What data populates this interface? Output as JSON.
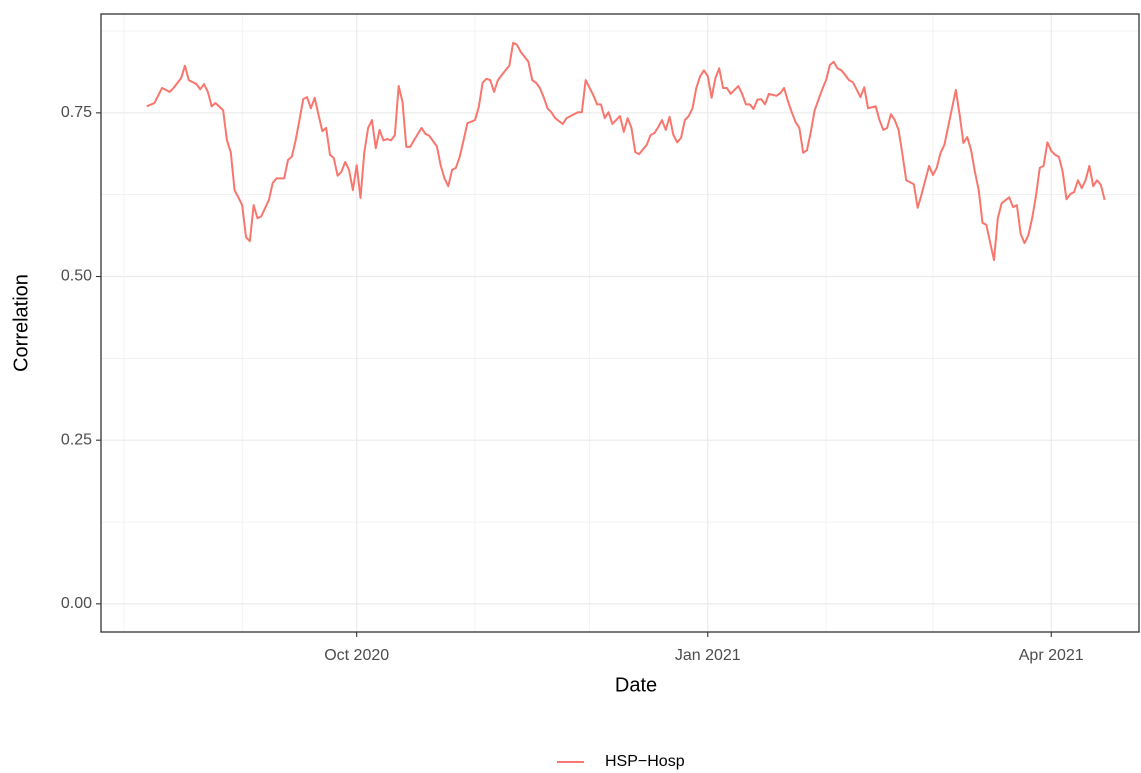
{
  "chart_data": {
    "type": "line",
    "x_label": "Date",
    "y_label": "Correlation",
    "x": [
      "2020-08-07",
      "2020-08-09",
      "2020-08-11",
      "2020-08-13",
      "2020-08-14",
      "2020-08-16",
      "2020-08-17",
      "2020-08-18",
      "2020-08-20",
      "2020-08-21",
      "2020-08-22",
      "2020-08-23",
      "2020-08-24",
      "2020-08-25",
      "2020-08-27",
      "2020-08-28",
      "2020-08-29",
      "2020-08-30",
      "2020-08-31",
      "2020-09-01",
      "2020-09-02",
      "2020-09-03",
      "2020-09-04",
      "2020-09-05",
      "2020-09-06",
      "2020-09-08",
      "2020-09-09",
      "2020-09-10",
      "2020-09-12",
      "2020-09-13",
      "2020-09-14",
      "2020-09-15",
      "2020-09-16",
      "2020-09-17",
      "2020-09-18",
      "2020-09-19",
      "2020-09-20",
      "2020-09-21",
      "2020-09-22",
      "2020-09-23",
      "2020-09-24",
      "2020-09-25",
      "2020-09-26",
      "2020-09-27",
      "2020-09-28",
      "2020-09-29",
      "2020-09-30",
      "2020-10-01",
      "2020-10-02",
      "2020-10-03",
      "2020-10-04",
      "2020-10-05",
      "2020-10-06",
      "2020-10-07",
      "2020-10-08",
      "2020-10-09",
      "2020-10-10",
      "2020-10-11",
      "2020-10-12",
      "2020-10-13",
      "2020-10-14",
      "2020-10-15",
      "2020-10-16",
      "2020-10-18",
      "2020-10-19",
      "2020-10-20",
      "2020-10-22",
      "2020-10-23",
      "2020-10-24",
      "2020-10-25",
      "2020-10-26",
      "2020-10-27",
      "2020-10-28",
      "2020-10-29",
      "2020-10-30",
      "2020-11-01",
      "2020-11-02",
      "2020-11-03",
      "2020-11-04",
      "2020-11-05",
      "2020-11-06",
      "2020-11-07",
      "2020-11-09",
      "2020-11-10",
      "2020-11-11",
      "2020-11-12",
      "2020-11-13",
      "2020-11-15",
      "2020-11-16",
      "2020-11-17",
      "2020-11-18",
      "2020-11-19",
      "2020-11-20",
      "2020-11-21",
      "2020-11-22",
      "2020-11-24",
      "2020-11-25",
      "2020-11-27",
      "2020-11-28",
      "2020-11-29",
      "2020-11-30",
      "2020-12-02",
      "2020-12-03",
      "2020-12-04",
      "2020-12-05",
      "2020-12-06",
      "2020-12-07",
      "2020-12-08",
      "2020-12-09",
      "2020-12-10",
      "2020-12-11",
      "2020-12-12",
      "2020-12-13",
      "2020-12-14",
      "2020-12-16",
      "2020-12-17",
      "2020-12-18",
      "2020-12-19",
      "2020-12-20",
      "2020-12-21",
      "2020-12-22",
      "2020-12-23",
      "2020-12-24",
      "2020-12-25",
      "2020-12-26",
      "2020-12-27",
      "2020-12-28",
      "2020-12-29",
      "2020-12-30",
      "2020-12-31",
      "2021-01-01",
      "2021-01-02",
      "2021-01-03",
      "2021-01-04",
      "2021-01-05",
      "2021-01-06",
      "2021-01-07",
      "2021-01-08",
      "2021-01-09",
      "2021-01-10",
      "2021-01-11",
      "2021-01-12",
      "2021-01-13",
      "2021-01-14",
      "2021-01-15",
      "2021-01-16",
      "2021-01-17",
      "2021-01-19",
      "2021-01-20",
      "2021-01-21",
      "2021-01-22",
      "2021-01-23",
      "2021-01-24",
      "2021-01-25",
      "2021-01-26",
      "2021-01-27",
      "2021-01-28",
      "2021-01-29",
      "2021-01-31",
      "2021-02-01",
      "2021-02-02",
      "2021-02-03",
      "2021-02-04",
      "2021-02-05",
      "2021-02-06",
      "2021-02-07",
      "2021-02-08",
      "2021-02-09",
      "2021-02-10",
      "2021-02-11",
      "2021-02-12",
      "2021-02-14",
      "2021-02-15",
      "2021-02-16",
      "2021-02-17",
      "2021-02-18",
      "2021-02-19",
      "2021-02-20",
      "2021-02-21",
      "2021-02-22",
      "2021-02-23",
      "2021-02-24",
      "2021-02-25",
      "2021-02-26",
      "2021-02-27",
      "2021-02-28",
      "2021-03-01",
      "2021-03-02",
      "2021-03-03",
      "2021-03-04",
      "2021-03-06",
      "2021-03-07",
      "2021-03-08",
      "2021-03-09",
      "2021-03-10",
      "2021-03-11",
      "2021-03-12",
      "2021-03-13",
      "2021-03-14",
      "2021-03-15",
      "2021-03-17",
      "2021-03-18",
      "2021-03-19",
      "2021-03-21",
      "2021-03-22",
      "2021-03-23",
      "2021-03-24",
      "2021-03-25",
      "2021-03-26",
      "2021-03-27",
      "2021-03-28",
      "2021-03-29",
      "2021-03-30",
      "2021-03-31",
      "2021-04-01",
      "2021-04-02",
      "2021-04-03",
      "2021-04-04",
      "2021-04-05",
      "2021-04-06",
      "2021-04-07",
      "2021-04-08",
      "2021-04-09",
      "2021-04-10",
      "2021-04-11",
      "2021-04-12",
      "2021-04-13",
      "2021-04-14",
      "2021-04-15"
    ],
    "series": [
      {
        "name": "HSP−Hosp",
        "color": "#F8766D",
        "values": [
          0.76,
          0.765,
          0.788,
          0.782,
          0.788,
          0.803,
          0.822,
          0.8,
          0.794,
          0.786,
          0.794,
          0.782,
          0.76,
          0.765,
          0.754,
          0.708,
          0.69,
          0.632,
          0.621,
          0.609,
          0.56,
          0.554,
          0.609,
          0.589,
          0.592,
          0.617,
          0.643,
          0.65,
          0.65,
          0.678,
          0.683,
          0.708,
          0.739,
          0.771,
          0.774,
          0.757,
          0.773,
          0.747,
          0.722,
          0.727,
          0.686,
          0.681,
          0.654,
          0.66,
          0.675,
          0.663,
          0.632,
          0.67,
          0.62,
          0.69,
          0.727,
          0.739,
          0.696,
          0.724,
          0.708,
          0.71,
          0.708,
          0.716,
          0.791,
          0.767,
          0.698,
          0.698,
          0.708,
          0.727,
          0.718,
          0.715,
          0.699,
          0.67,
          0.65,
          0.638,
          0.663,
          0.666,
          0.683,
          0.708,
          0.734,
          0.739,
          0.759,
          0.796,
          0.802,
          0.8,
          0.782,
          0.8,
          0.815,
          0.822,
          0.857,
          0.854,
          0.843,
          0.828,
          0.8,
          0.796,
          0.788,
          0.774,
          0.757,
          0.751,
          0.742,
          0.733,
          0.742,
          0.748,
          0.751,
          0.751,
          0.8,
          0.777,
          0.763,
          0.763,
          0.742,
          0.751,
          0.733,
          0.739,
          0.745,
          0.721,
          0.742,
          0.727,
          0.69,
          0.687,
          0.701,
          0.716,
          0.719,
          0.728,
          0.739,
          0.724,
          0.744,
          0.716,
          0.705,
          0.712,
          0.739,
          0.745,
          0.757,
          0.788,
          0.806,
          0.815,
          0.806,
          0.773,
          0.803,
          0.818,
          0.788,
          0.788,
          0.779,
          0.785,
          0.791,
          0.779,
          0.763,
          0.763,
          0.756,
          0.77,
          0.771,
          0.763,
          0.779,
          0.776,
          0.78,
          0.788,
          0.768,
          0.751,
          0.736,
          0.727,
          0.689,
          0.693,
          0.721,
          0.754,
          0.786,
          0.8,
          0.823,
          0.828,
          0.818,
          0.815,
          0.808,
          0.8,
          0.797,
          0.786,
          0.774,
          0.789,
          0.757,
          0.76,
          0.739,
          0.724,
          0.727,
          0.748,
          0.739,
          0.724,
          0.687,
          0.647,
          0.644,
          0.641,
          0.605,
          0.625,
          0.647,
          0.669,
          0.655,
          0.666,
          0.689,
          0.701,
          0.757,
          0.785,
          0.747,
          0.704,
          0.713,
          0.693,
          0.66,
          0.632,
          0.582,
          0.579,
          0.525,
          0.589,
          0.612,
          0.621,
          0.606,
          0.609,
          0.565,
          0.551,
          0.563,
          0.589,
          0.623,
          0.666,
          0.669,
          0.705,
          0.692,
          0.686,
          0.683,
          0.66,
          0.618,
          0.626,
          0.629,
          0.647,
          0.635,
          0.647,
          0.669,
          0.638,
          0.647,
          0.64,
          0.617
        ]
      }
    ],
    "xlim": [
      "2020-07-26",
      "2021-04-24"
    ],
    "xticks": [
      {
        "value": "2020-10-01",
        "label": "Oct 2020"
      },
      {
        "value": "2021-01-01",
        "label": "Jan 2021"
      },
      {
        "value": "2021-04-01",
        "label": "Apr 2021"
      }
    ],
    "x_minor_ticks": [
      "2020-08-01",
      "2020-09-01",
      "2020-11-01",
      "2020-12-01",
      "2021-02-01",
      "2021-03-01"
    ],
    "ylim": [
      -0.043,
      0.901
    ],
    "yticks": [
      {
        "value": 0,
        "label": "0.00"
      },
      {
        "value": 0.25,
        "label": "0.25"
      },
      {
        "value": 0.5,
        "label": "0.50"
      },
      {
        "value": 0.75,
        "label": "0.75"
      }
    ],
    "y_minor_ticks": [
      0.125,
      0.375,
      0.625,
      0.875
    ],
    "grid": true,
    "legend": "bottom"
  }
}
